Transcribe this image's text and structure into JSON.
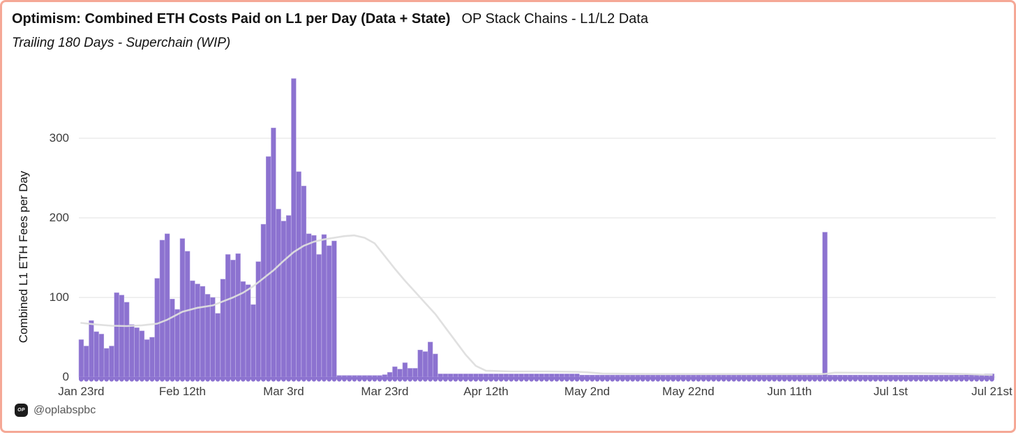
{
  "header": {
    "title_bold": "Optimism: Combined ETH Costs Paid on L1 per Day (Data + State)",
    "title_regular": "OP Stack Chains - L1/L2 Data",
    "subtitle": "Trailing 180 Days - Superchain (WIP)"
  },
  "footer": {
    "logo_text": "OP",
    "handle": "@oplabspbc"
  },
  "colors": {
    "frame_border": "#f5a896",
    "bar": "#8c72d0",
    "bar_edge": "#b2a1e1",
    "trend_line": "#dedede",
    "gridline": "#ebebeb",
    "tick_text": "#3d3d3d",
    "title_text": "#121212",
    "handle_text": "#575757",
    "logo_bg": "#1c1c1c"
  },
  "chart_data": {
    "type": "bar",
    "title": "Optimism: Combined ETH Costs Paid on L1 per Day (Data + State)",
    "subtitle": "Trailing 180 Days - Superchain (WIP)",
    "ylabel": "Combined L1 ETH Fees per Day",
    "xlabel": "",
    "grid": "horizontal",
    "legend": "none",
    "ylim": [
      0,
      390
    ],
    "y_ticks": [
      0,
      100,
      200,
      300
    ],
    "x_tick_days": [
      1,
      21,
      41,
      61,
      81,
      101,
      121,
      141,
      161,
      181
    ],
    "x_tick_labels": [
      "Jan 23rd",
      "Feb 12th",
      "Mar 3rd",
      "Mar 23rd",
      "Apr 12th",
      "May 2nd",
      "May 22nd",
      "Jun 11th",
      "Jul 1st",
      "Jul 21st"
    ],
    "series_name": "Combined L1 ETH fees per day (ETH)",
    "values": [
      47,
      39,
      71,
      57,
      54,
      36,
      39,
      106,
      103,
      94,
      66,
      62,
      58,
      47,
      50,
      124,
      172,
      180,
      98,
      85,
      174,
      158,
      121,
      117,
      114,
      104,
      100,
      80,
      123,
      154,
      147,
      155,
      120,
      116,
      91,
      145,
      192,
      277,
      313,
      211,
      196,
      203,
      375,
      258,
      240,
      180,
      178,
      154,
      179,
      165,
      171,
      2,
      2,
      2,
      2,
      2,
      2,
      2,
      2,
      2,
      3,
      6,
      13,
      10,
      18,
      11,
      11,
      34,
      32,
      44,
      29,
      4,
      4,
      4,
      4,
      4,
      4,
      4,
      4,
      4,
      4,
      4,
      4,
      4,
      4,
      4,
      4,
      4,
      4,
      4,
      4,
      4,
      4,
      4,
      4,
      4,
      4,
      4,
      4,
      2.5,
      2.5,
      2.5,
      2.5,
      2.5,
      2.5,
      2.5,
      2.5,
      2.5,
      2.5,
      2.5,
      2.5,
      2.5,
      2.5,
      2.5,
      2.5,
      2.5,
      2.5,
      2.5,
      2.5,
      2.5,
      2.5,
      2.5,
      2.5,
      2.5,
      2.5,
      2.5,
      2.5,
      2.5,
      2.5,
      2.5,
      2.5,
      2.5,
      2.5,
      2.5,
      2.5,
      2.5,
      2.5,
      2.5,
      2.5,
      2.5,
      2.5,
      2.5,
      2.5,
      2.5,
      2.5,
      2.5,
      2.5,
      182,
      2.5,
      2.5,
      2.5,
      2.5,
      2.5,
      2.5,
      2.5,
      2.5,
      2.5,
      2.5,
      2.5,
      2.5,
      2.5,
      2.5,
      2.5,
      2.5,
      2.5,
      2.5,
      2.5,
      2.5,
      2.5,
      2.5,
      2.5,
      2.5,
      2.5,
      2.5,
      2.5,
      3,
      3,
      3,
      3,
      4,
      4
    ],
    "trend_line": {
      "name": "trailing average",
      "points": [
        [
          1,
          68
        ],
        [
          4,
          66
        ],
        [
          7,
          64.5
        ],
        [
          10,
          64
        ],
        [
          13,
          65
        ],
        [
          16,
          67
        ],
        [
          18,
          72
        ],
        [
          21,
          82
        ],
        [
          24,
          87
        ],
        [
          27,
          90
        ],
        [
          29,
          95
        ],
        [
          31,
          100
        ],
        [
          33,
          106
        ],
        [
          35,
          114
        ],
        [
          37,
          124
        ],
        [
          39,
          134
        ],
        [
          41,
          146
        ],
        [
          43,
          157
        ],
        [
          45,
          165
        ],
        [
          47,
          170
        ],
        [
          49,
          173
        ],
        [
          51,
          175
        ],
        [
          53,
          177
        ],
        [
          55,
          178
        ],
        [
          57,
          175
        ],
        [
          59,
          168
        ],
        [
          61,
          152
        ],
        [
          63,
          136
        ],
        [
          65,
          121
        ],
        [
          67,
          107
        ],
        [
          69,
          93
        ],
        [
          71,
          79
        ],
        [
          73,
          62
        ],
        [
          75,
          45
        ],
        [
          77,
          28
        ],
        [
          79,
          14
        ],
        [
          81,
          8
        ],
        [
          86,
          7
        ],
        [
          93,
          7
        ],
        [
          99,
          6.5
        ],
        [
          101,
          6
        ],
        [
          104,
          4.5
        ],
        [
          110,
          4
        ],
        [
          125,
          3.8
        ],
        [
          140,
          3.8
        ],
        [
          147,
          3.8
        ],
        [
          148,
          4
        ],
        [
          150,
          5.5
        ],
        [
          158,
          5.2
        ],
        [
          166,
          5
        ],
        [
          172,
          4.5
        ],
        [
          176,
          3.8
        ],
        [
          179,
          3
        ],
        [
          181,
          2.8
        ]
      ]
    }
  }
}
